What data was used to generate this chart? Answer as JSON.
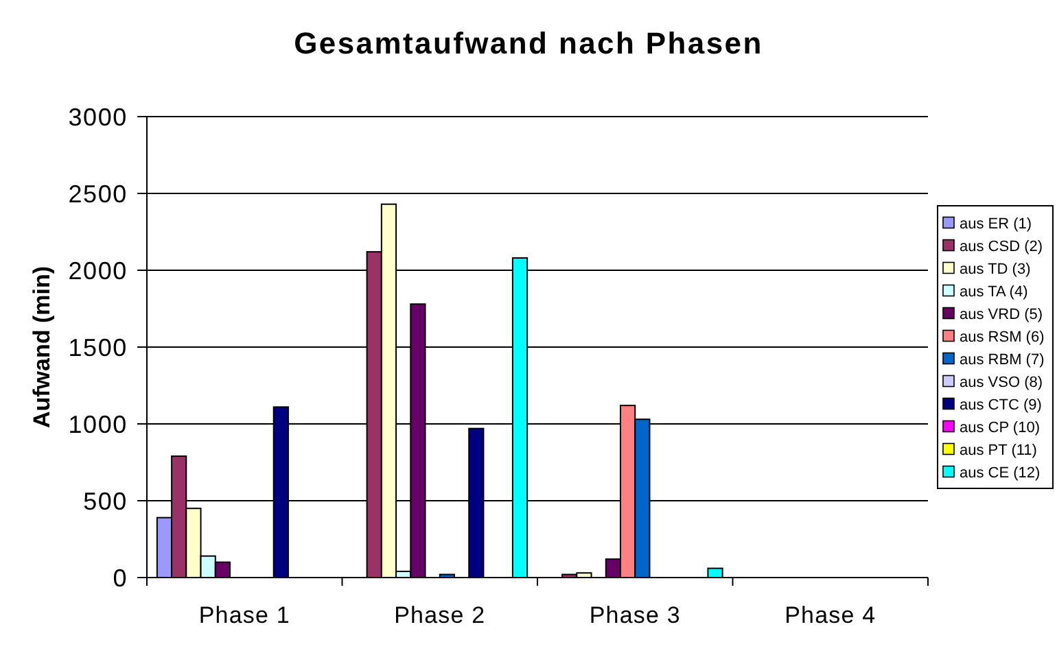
{
  "chart_data": {
    "type": "bar",
    "title": "Gesamtaufwand nach Phasen",
    "ylabel": "Aufwand (min)",
    "categories": [
      "Phase 1",
      "Phase 2",
      "Phase 3",
      "Phase 4"
    ],
    "series": [
      {
        "name": "aus ER (1)",
        "color": "#9999ff",
        "values": [
          390,
          0,
          0,
          0
        ]
      },
      {
        "name": "aus CSD (2)",
        "color": "#993366",
        "values": [
          790,
          2120,
          20,
          0
        ]
      },
      {
        "name": "aus TD (3)",
        "color": "#ffffcc",
        "values": [
          450,
          2430,
          30,
          0
        ]
      },
      {
        "name": "aus TA (4)",
        "color": "#ccffff",
        "values": [
          140,
          40,
          0,
          0
        ]
      },
      {
        "name": "aus VRD (5)",
        "color": "#660066",
        "values": [
          100,
          1780,
          120,
          0
        ]
      },
      {
        "name": "aus RSM (6)",
        "color": "#ff8080",
        "values": [
          0,
          0,
          1120,
          0
        ]
      },
      {
        "name": "aus RBM (7)",
        "color": "#0066cc",
        "values": [
          0,
          20,
          1030,
          0
        ]
      },
      {
        "name": "aus VSO (8)",
        "color": "#ccccff",
        "values": [
          0,
          0,
          0,
          0
        ]
      },
      {
        "name": "aus CTC (9)",
        "color": "#000080",
        "values": [
          1110,
          970,
          0,
          0
        ]
      },
      {
        "name": "aus CP (10)",
        "color": "#ff00ff",
        "values": [
          0,
          0,
          0,
          0
        ]
      },
      {
        "name": "aus PT (11)",
        "color": "#ffff00",
        "values": [
          0,
          0,
          0,
          0
        ]
      },
      {
        "name": "aus CE (12)",
        "color": "#00ffff",
        "values": [
          0,
          2080,
          60,
          0
        ]
      }
    ],
    "ylim": [
      0,
      3000
    ],
    "yticks": [
      0,
      500,
      1000,
      1500,
      2000,
      2500,
      3000
    ],
    "grid": "y",
    "legend": "right"
  }
}
